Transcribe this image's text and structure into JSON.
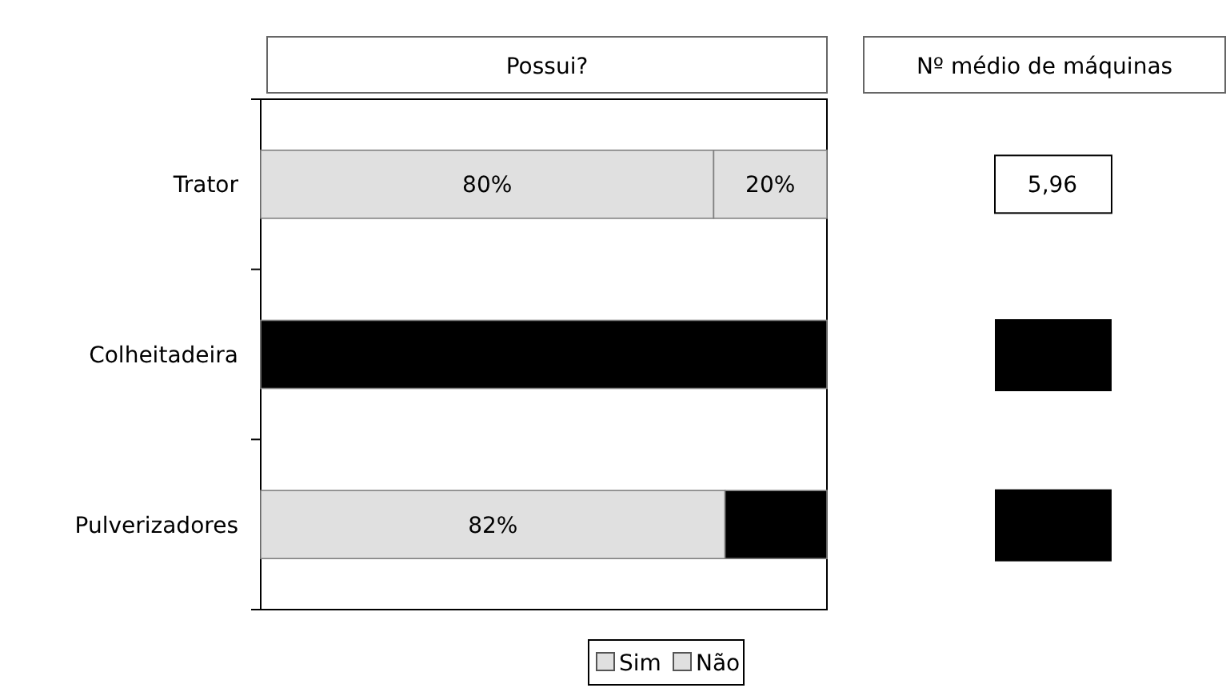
{
  "chart_data": [
    {
      "type": "bar",
      "title": "Possui?",
      "orientation": "horizontal",
      "stacked": true,
      "categories": [
        "Trator",
        "Colheitadeira",
        "Pulverizadores"
      ],
      "xlim": [
        0,
        100
      ],
      "tick_labels": "y",
      "legend": "bottom",
      "series": [
        {
          "name": "Sim",
          "color": "#e0e0e0",
          "colors": [
            "#e0e0e0",
            null,
            "#e0e0e0"
          ],
          "values": [
            80,
            null,
            82
          ],
          "value_labels": [
            "80%",
            null,
            "82%"
          ]
        },
        {
          "name": "Não",
          "color": "#e0e0e0",
          "colors": [
            "#e0e0e0",
            null,
            "#000000"
          ],
          "values": [
            20,
            null,
            18
          ],
          "value_labels": [
            "20%",
            null,
            null
          ]
        },
        {
          "color": "#000000",
          "values": [
            null,
            100,
            null
          ]
        }
      ]
    },
    {
      "type": "other",
      "title": "Nº médio de máquinas",
      "categories": [
        null,
        null,
        null
      ],
      "value_labels": [
        "5,96",
        null,
        null
      ]
    }
  ]
}
